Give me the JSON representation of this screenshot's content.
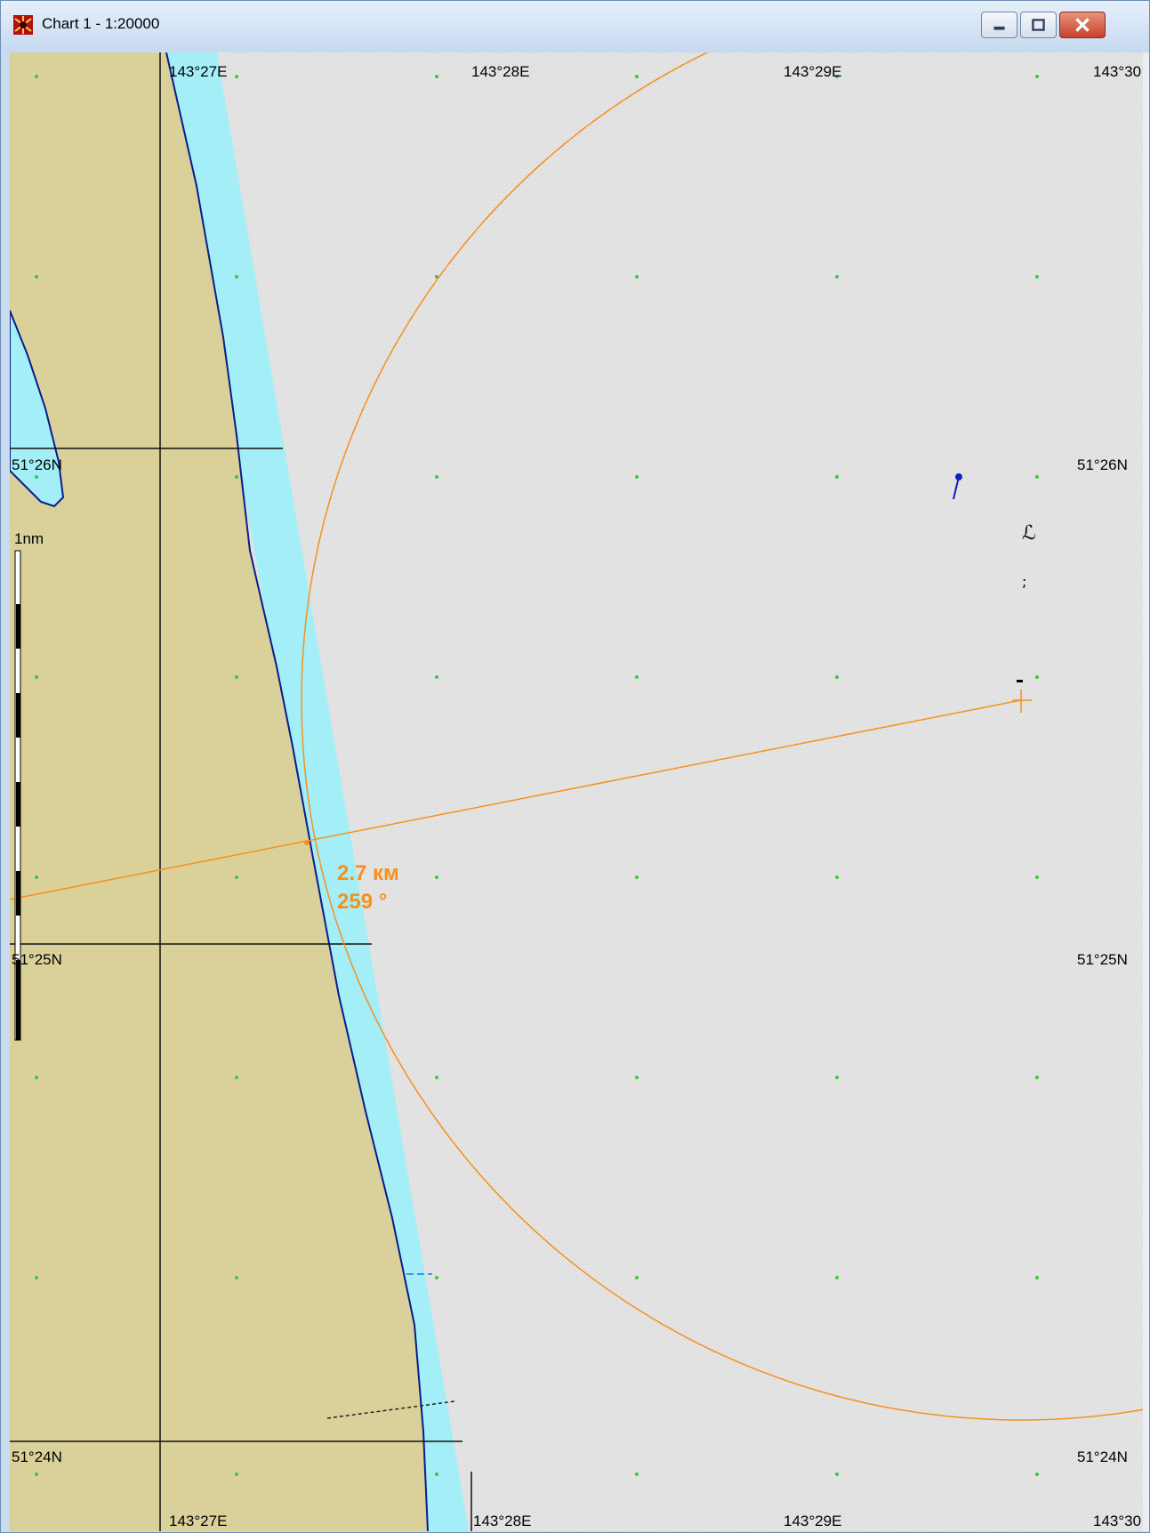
{
  "window": {
    "title": "Chart 1 - 1:20000",
    "buttons": {
      "minimize": "minimize-icon",
      "maximize": "maximize-icon",
      "close": "close-icon"
    },
    "icon": "app-chart-icon"
  },
  "chart": {
    "scale_label": "1nm",
    "longitude_labels_top": [
      "143°27E",
      "143°28E",
      "143°29E",
      "143°30"
    ],
    "longitude_labels_bottom": [
      "143°27E",
      "143°28E",
      "143°29E",
      "143°30"
    ],
    "latitude_labels_left": [
      "51°26N",
      "51°25N",
      "51°24N"
    ],
    "latitude_labels_right": [
      "51°26N",
      "51°25N",
      "51°24N"
    ],
    "measurement": {
      "distance": "2.7 км",
      "bearing": "259 °"
    },
    "colors": {
      "land": "#d9d199",
      "shallow_water": "#a4eef7",
      "deep_water": "#e4e4e4",
      "measure_line": "#f7901e",
      "grid_dot": "#3cc83c",
      "coastline": "#0a1c8c"
    }
  }
}
